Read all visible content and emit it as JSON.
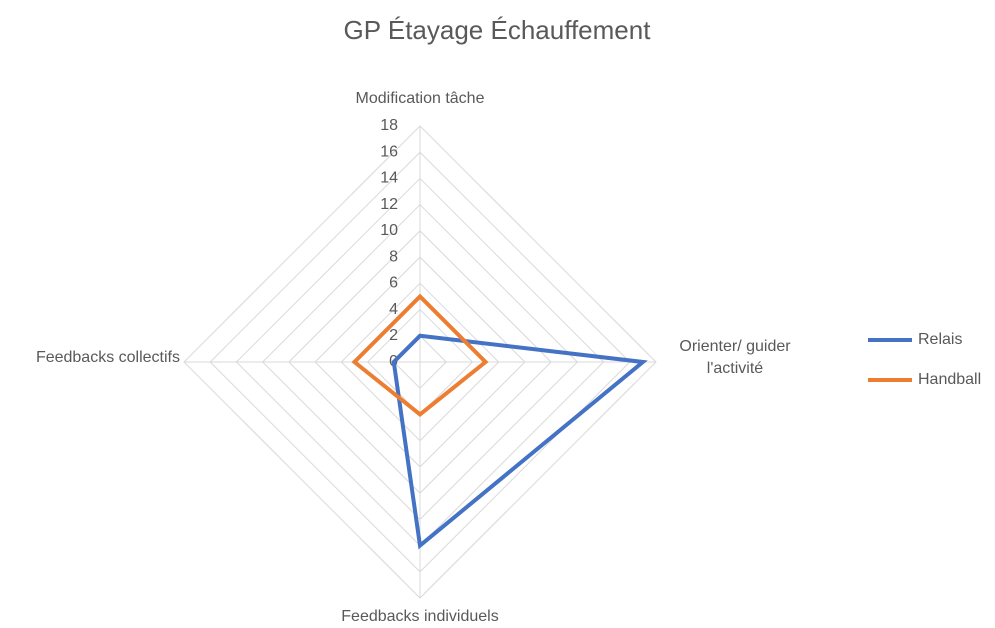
{
  "chart_data": {
    "type": "radar",
    "title": "GP Étayage Échauffement",
    "categories": [
      "Modification tâche",
      "Orienter/ guider l'activité",
      "Feedbacks individuels",
      "Feedbacks collectifs"
    ],
    "series": [
      {
        "name": "Relais",
        "color": "#4472c4",
        "values": [
          2,
          17,
          14,
          2
        ]
      },
      {
        "name": "Handball",
        "color": "#ed7d31",
        "values": [
          5,
          5,
          4,
          5
        ]
      }
    ],
    "ylim": [
      0,
      18
    ],
    "yticks": [
      0,
      2,
      4,
      6,
      8,
      10,
      12,
      14,
      16,
      18
    ],
    "grid": true,
    "legend": "right"
  }
}
